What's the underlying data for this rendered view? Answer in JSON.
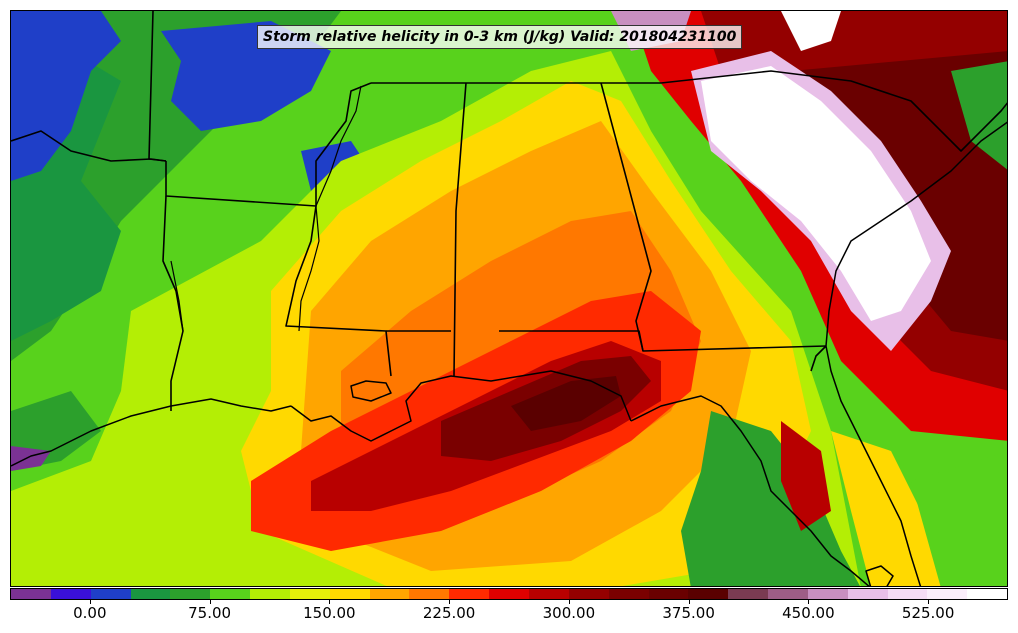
{
  "title": "Storm relative helicity in 0-3 km (J/kg) Valid: 201804231100",
  "colorbar": {
    "min": -50,
    "max": 575,
    "step": 25,
    "colors": [
      "#7b3294",
      "#3a10d8",
      "#1f3fc8",
      "#1a9640",
      "#2ca02c",
      "#58d21c",
      "#b4ee05",
      "#e6f00a",
      "#ffd900",
      "#ffa500",
      "#ff7800",
      "#ff2a00",
      "#e00000",
      "#b80000",
      "#940000",
      "#7a0000",
      "#6a0000",
      "#5a0000",
      "#7a3b52",
      "#9e5d86",
      "#c88fc0",
      "#e8bfe8",
      "#f5dcf5",
      "#fbeefb",
      "#ffffff"
    ],
    "ticks": [
      "0.00",
      "75.00",
      "150.00",
      "225.00",
      "300.00",
      "375.00",
      "450.00",
      "525.00"
    ],
    "tick_values": [
      0,
      75,
      150,
      225,
      300,
      375,
      450,
      525
    ]
  },
  "legend": {
    "palette_low": "#3a10d8",
    "palette_high": "#ffffff",
    "land_base": "#58d21c",
    "max_core": "#6a0000"
  }
}
